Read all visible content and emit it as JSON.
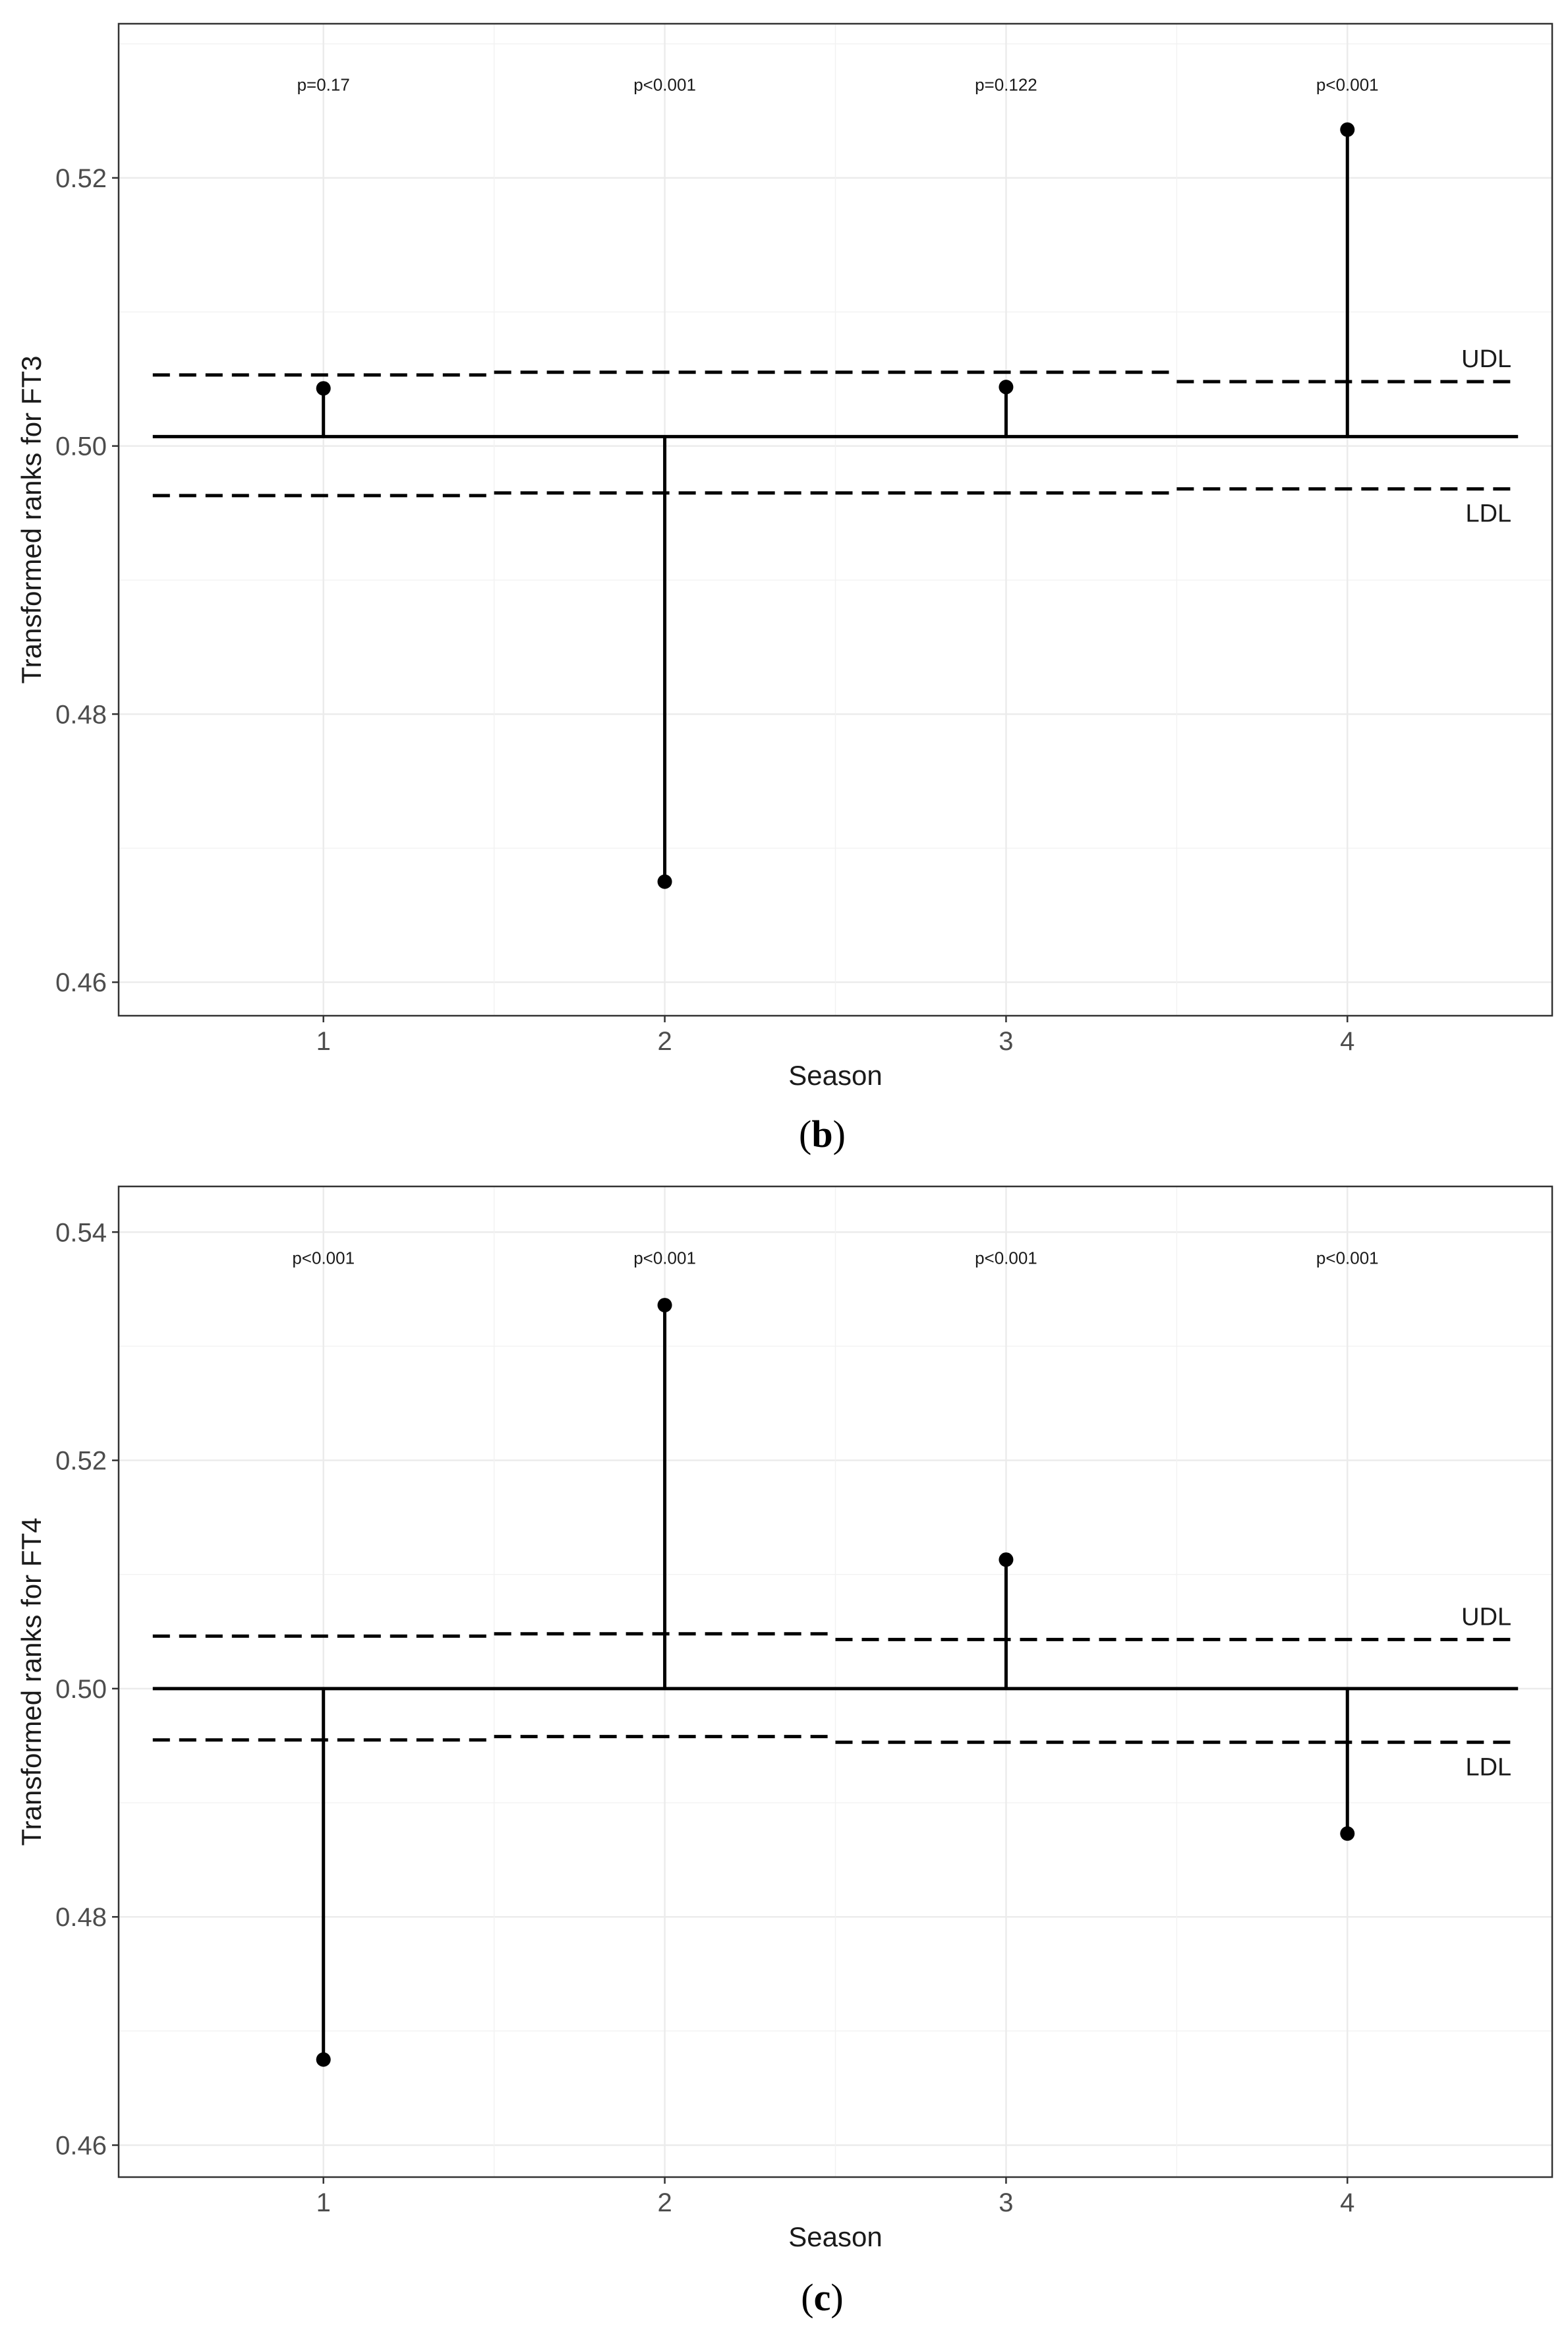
{
  "chart_data": [
    {
      "type": "line",
      "panel_label": "b",
      "xlabel": "Season",
      "ylabel": "Transformed ranks for FT3",
      "x_ticks": [
        1,
        2,
        3,
        4
      ],
      "y_ticks": [
        0.46,
        0.48,
        0.5,
        0.52
      ],
      "y_tick_labels": [
        "0.46",
        "0.48",
        "0.50",
        "0.52"
      ],
      "xlim": [
        0.4,
        4.6
      ],
      "ylim": [
        0.4575,
        0.5315
      ],
      "grid": true,
      "center_line": 0.5007,
      "udl": [
        {
          "x_start": 0.5,
          "x_end": 1.5,
          "y": 0.5053
        },
        {
          "x_start": 1.5,
          "x_end": 2.5,
          "y": 0.5055
        },
        {
          "x_start": 2.5,
          "x_end": 3.5,
          "y": 0.5055
        },
        {
          "x_start": 3.5,
          "x_end": 4.5,
          "y": 0.5048
        }
      ],
      "ldl": [
        {
          "x_start": 0.5,
          "x_end": 1.5,
          "y": 0.4963
        },
        {
          "x_start": 1.5,
          "x_end": 2.5,
          "y": 0.4965
        },
        {
          "x_start": 2.5,
          "x_end": 3.5,
          "y": 0.4965
        },
        {
          "x_start": 3.5,
          "x_end": 4.5,
          "y": 0.4968
        }
      ],
      "udl_label": "UDL",
      "ldl_label": "LDL",
      "points": [
        {
          "x": 1,
          "y": 0.5043,
          "p_label": "p=0.17"
        },
        {
          "x": 2,
          "y": 0.4675,
          "p_label": "p<0.001"
        },
        {
          "x": 3,
          "y": 0.5044,
          "p_label": "p=0.122"
        },
        {
          "x": 4,
          "y": 0.5236,
          "p_label": "p<0.001"
        }
      ],
      "p_label_y": 0.5265
    },
    {
      "type": "line",
      "panel_label": "c",
      "xlabel": "Season",
      "ylabel": "Transformed ranks for FT4",
      "x_ticks": [
        1,
        2,
        3,
        4
      ],
      "y_ticks": [
        0.46,
        0.48,
        0.5,
        0.52,
        0.54
      ],
      "y_tick_labels": [
        "0.46",
        "0.48",
        "0.50",
        "0.52",
        "0.54"
      ],
      "xlim": [
        0.4,
        4.6
      ],
      "ylim": [
        0.4572,
        0.544
      ],
      "grid": true,
      "center_line": 0.5,
      "udl": [
        {
          "x_start": 0.5,
          "x_end": 1.5,
          "y": 0.5046
        },
        {
          "x_start": 1.5,
          "x_end": 2.5,
          "y": 0.5048
        },
        {
          "x_start": 2.5,
          "x_end": 3.5,
          "y": 0.5043
        },
        {
          "x_start": 3.5,
          "x_end": 4.5,
          "y": 0.5043
        }
      ],
      "ldl": [
        {
          "x_start": 0.5,
          "x_end": 1.5,
          "y": 0.4955
        },
        {
          "x_start": 1.5,
          "x_end": 2.5,
          "y": 0.4958
        },
        {
          "x_start": 2.5,
          "x_end": 3.5,
          "y": 0.4953
        },
        {
          "x_start": 3.5,
          "x_end": 4.5,
          "y": 0.4953
        }
      ],
      "udl_label": "UDL",
      "ldl_label": "LDL",
      "points": [
        {
          "x": 1,
          "y": 0.4675,
          "p_label": "p<0.001"
        },
        {
          "x": 2,
          "y": 0.5336,
          "p_label": "p<0.001"
        },
        {
          "x": 3,
          "y": 0.5113,
          "p_label": "p<0.001"
        },
        {
          "x": 4,
          "y": 0.4873,
          "p_label": "p<0.001"
        }
      ],
      "p_label_y": 0.5372
    }
  ]
}
